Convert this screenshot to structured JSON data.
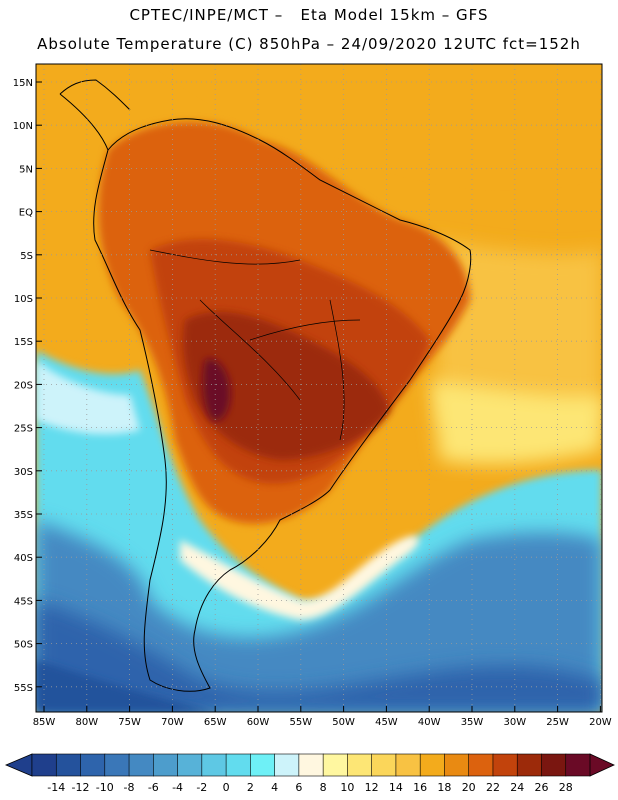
{
  "header": {
    "line1": "CPTEC/INPE/MCT –   Eta Model 15km – GFS",
    "line2": "Absolute Temperature (C) 850hPa – 24/09/2020 12UTC fct=152h"
  },
  "axes": {
    "lat_labels": [
      "15N",
      "10N",
      "5N",
      "EQ",
      "5S",
      "10S",
      "15S",
      "20S",
      "25S",
      "30S",
      "35S",
      "40S",
      "45S",
      "50S",
      "55S"
    ],
    "lon_labels": [
      "85W",
      "80W",
      "75W",
      "70W",
      "65W",
      "60W",
      "55W",
      "50W",
      "45W",
      "40W",
      "35W",
      "30W",
      "25W",
      "20W"
    ]
  },
  "colorbar": {
    "labels": [
      "-14",
      "-12",
      "-10",
      "-8",
      "-6",
      "-4",
      "-2",
      "0",
      "2",
      "4",
      "6",
      "8",
      "10",
      "12",
      "14",
      "16",
      "18",
      "20",
      "22",
      "24",
      "26",
      "28"
    ],
    "colors": [
      "#1f3f8c",
      "#24529c",
      "#2e64ac",
      "#3a77b8",
      "#4489c2",
      "#4d9dcc",
      "#57b2d8",
      "#5ec8e4",
      "#62dcee",
      "#6ef0f6",
      "#cdf3fa",
      "#fff7e0",
      "#fff7a0",
      "#fde675",
      "#fbd65a",
      "#f8c243",
      "#f3ab1c",
      "#e98a12",
      "#dc620e",
      "#c2430c",
      "#9c2a0a",
      "#7a1610",
      "#6a0a26"
    ]
  },
  "map_colors": {
    "ocean_warm": "#f3ab1c",
    "ocean_mid": "#f8c243",
    "land_hot": "#c2430c",
    "land_hotter": "#9c2a0a",
    "land_hottest": "#7a1610",
    "cold_cyan": "#62dcee",
    "cold_blue": "#2e64ac",
    "cold_deep": "#24529c",
    "coast": "#000000"
  }
}
